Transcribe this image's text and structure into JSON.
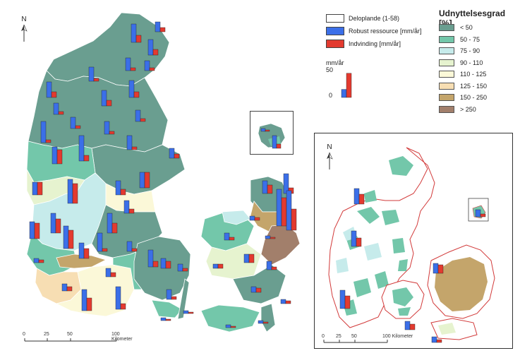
{
  "units_legend": {
    "items": [
      {
        "label": "Deloplande (1-58)",
        "color": "#ffffff"
      },
      {
        "label": "Robust ressource [mm/år]",
        "color": "#3b6fe8"
      },
      {
        "label": "Indvinding [mm/år]",
        "color": "#e33a2f"
      }
    ],
    "scale_unit": "mm/år",
    "scale_ticks": [
      "50",
      "0"
    ],
    "scale_bar_values": [
      15,
      45
    ]
  },
  "class_legend": {
    "title": "Udnyttelsesgrad [%]",
    "classes": [
      {
        "label": "< 50",
        "color": "#6a9e90"
      },
      {
        "label": "50 - 75",
        "color": "#73c7aa"
      },
      {
        "label": "75 - 90",
        "color": "#c6ebeb"
      },
      {
        "label": "90 - 110",
        "color": "#e6f3cf"
      },
      {
        "label": "110 - 125",
        "color": "#fbf8d8"
      },
      {
        "label": "125 - 150",
        "color": "#f7deb3"
      },
      {
        "label": "150 - 250",
        "color": "#c4a56b"
      },
      {
        "label": "> 250",
        "color": "#a27f6b"
      }
    ]
  },
  "main_map": {
    "north": "N",
    "scale": {
      "ticks": [
        "0",
        "25",
        "50",
        "100 Kilometer"
      ]
    }
  },
  "inset_map": {
    "north": "N",
    "scale": {
      "ticks": [
        "0",
        "25",
        "50",
        "100 Kilometer"
      ]
    }
  },
  "colors": {
    "robust": "#3b6fe8",
    "indvinding": "#e33a2f",
    "outline": "#d23a3a"
  }
}
